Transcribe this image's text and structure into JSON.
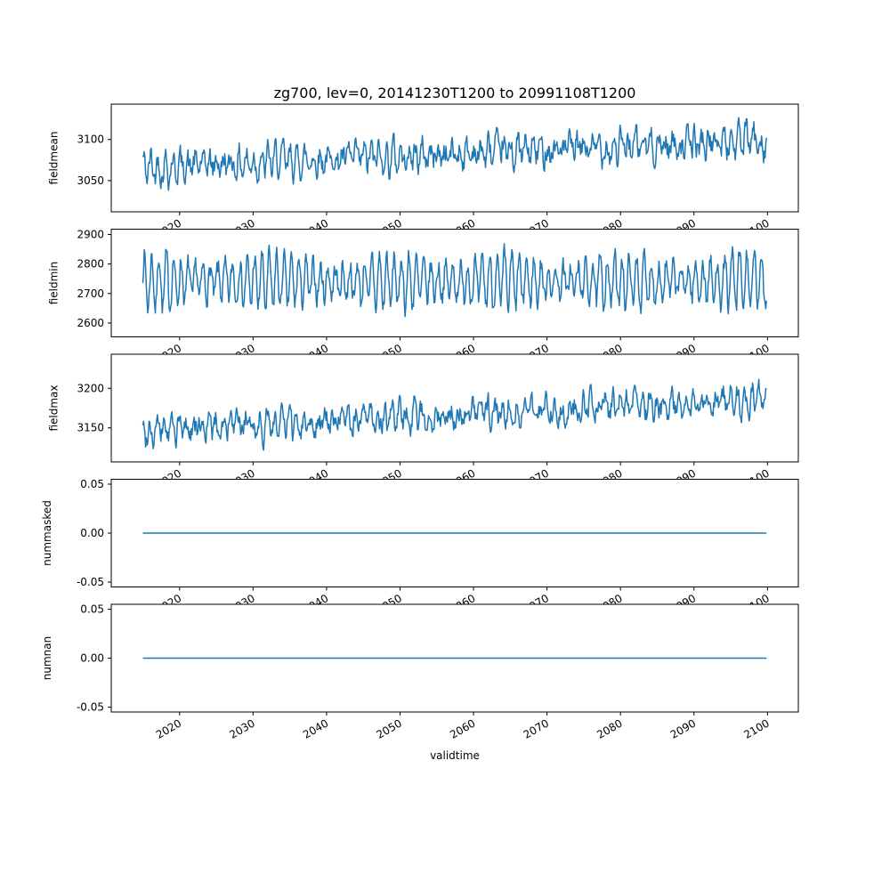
{
  "figure": {
    "title": "zg700, lev=0, 20141230T1200 to 20991108T1200",
    "xlabel": "validtime",
    "background": "#ffffff",
    "line_color": "#1f77b4",
    "xlim": [
      2010.7,
      2104.2
    ],
    "xticks": [
      {
        "v": 2020,
        "label": "2020"
      },
      {
        "v": 2030,
        "label": "2030"
      },
      {
        "v": 2040,
        "label": "2040"
      },
      {
        "v": 2050,
        "label": "2050"
      },
      {
        "v": 2060,
        "label": "2060"
      },
      {
        "v": 2070,
        "label": "2070"
      },
      {
        "v": 2080,
        "label": "2080"
      },
      {
        "v": 2090,
        "label": "2090"
      },
      {
        "v": 2100,
        "label": "2100"
      }
    ]
  },
  "chart_data": [
    {
      "type": "line",
      "name": "fieldmean",
      "ylabel": "fieldmean",
      "yticks": [
        {
          "v": 3050,
          "label": "3050"
        },
        {
          "v": 3100,
          "label": "3100"
        }
      ],
      "ylim": [
        3012,
        3143
      ],
      "value_range_approx": [
        3020,
        3140
      ],
      "trend": "noisy series rising from about 3070 to about 3100 over 2015-2100",
      "series": {
        "n": 900,
        "x0": 2015.0,
        "x1": 2099.86,
        "y0": 3066,
        "y1": 3099,
        "amp": 13,
        "freq": 0.593,
        "phase": 1.1,
        "noise": 13,
        "persist": 0.5,
        "seed": 42
      }
    },
    {
      "type": "line",
      "name": "fieldmin",
      "ylabel": "fieldmin",
      "yticks": [
        {
          "v": 2600,
          "label": "2600"
        },
        {
          "v": 2700,
          "label": "2700"
        },
        {
          "v": 2800,
          "label": "2800"
        },
        {
          "v": 2900,
          "label": "2900"
        }
      ],
      "ylim": [
        2553,
        2918
      ],
      "value_range_approx": [
        2570,
        2900
      ],
      "trend": "strong dense oscillation around 2740 with no long-term trend",
      "series": {
        "n": 900,
        "x0": 2015.0,
        "x1": 2099.86,
        "y0": 2740,
        "y1": 2742,
        "amp": 88,
        "freq": 0.593,
        "phase": 0.3,
        "noise": 32,
        "persist": 0.3,
        "seed": 7
      }
    },
    {
      "type": "line",
      "name": "fieldmax",
      "ylabel": "fieldmax",
      "yticks": [
        {
          "v": 3150,
          "label": "3150"
        },
        {
          "v": 3200,
          "label": "3200"
        }
      ],
      "ylim": [
        3107,
        3243
      ],
      "value_range_approx": [
        3115,
        3240
      ],
      "trend": "noisy series rising from about 3150 to about 3185 over 2015-2100",
      "series": {
        "n": 900,
        "x0": 2015.0,
        "x1": 2099.86,
        "y0": 3147,
        "y1": 3186,
        "amp": 13,
        "freq": 0.593,
        "phase": 2.0,
        "noise": 12,
        "persist": 0.5,
        "seed": 99
      }
    },
    {
      "type": "line",
      "name": "nummasked",
      "ylabel": "nummasked",
      "yticks": [
        {
          "v": -0.05,
          "label": "-0.05"
        },
        {
          "v": 0,
          "label": "0.00"
        },
        {
          "v": 0.05,
          "label": "0.05"
        }
      ],
      "ylim": [
        -0.055,
        0.055
      ],
      "value_range_approx": [
        0,
        0
      ],
      "trend": "constant zero",
      "series": {
        "n": 2,
        "x0": 2015.0,
        "x1": 2099.86,
        "y0": 0,
        "y1": 0,
        "amp": 0,
        "freq": 0,
        "phase": 0,
        "noise": 0,
        "persist": 0,
        "seed": 1
      }
    },
    {
      "type": "line",
      "name": "numnan",
      "ylabel": "numnan",
      "yticks": [
        {
          "v": -0.05,
          "label": "-0.05"
        },
        {
          "v": 0,
          "label": "0.00"
        },
        {
          "v": 0.05,
          "label": "0.05"
        }
      ],
      "ylim": [
        -0.055,
        0.055
      ],
      "value_range_approx": [
        0,
        0
      ],
      "trend": "constant zero",
      "series": {
        "n": 2,
        "x0": 2015.0,
        "x1": 2099.86,
        "y0": 0,
        "y1": 0,
        "amp": 0,
        "freq": 0,
        "phase": 0,
        "noise": 0,
        "persist": 0,
        "seed": 2
      }
    }
  ]
}
